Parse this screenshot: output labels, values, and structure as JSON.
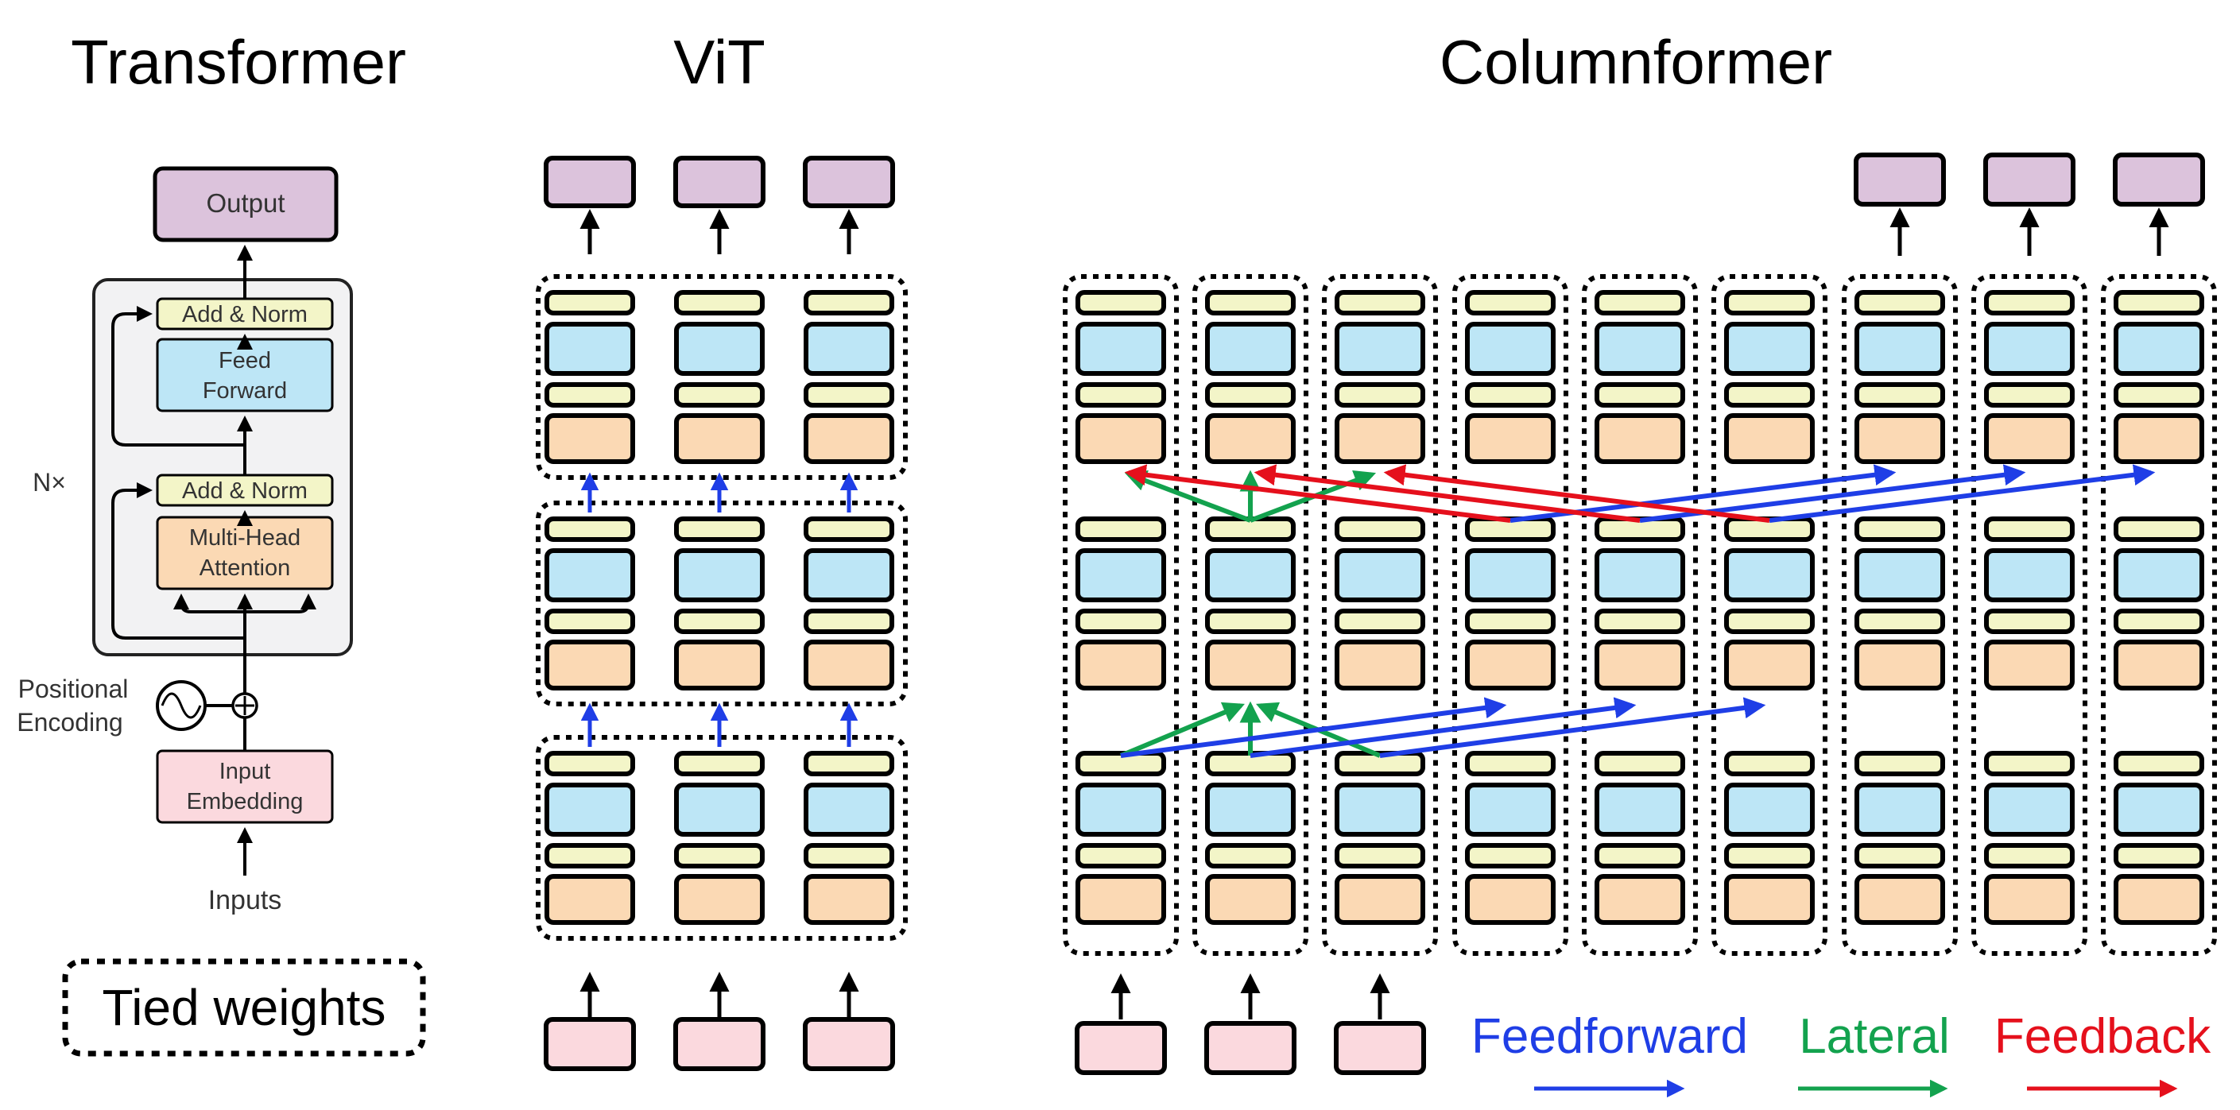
{
  "titles": {
    "transformer": "Transformer",
    "vit": "ViT",
    "columnformer": "Columnformer"
  },
  "transformer_block": {
    "output": "Output",
    "add_norm_top": "Add & Norm",
    "feed_forward_line1": "Feed",
    "feed_forward_line2": "Forward",
    "repeat": "N×",
    "add_norm_bottom": "Add & Norm",
    "attention_line1": "Multi-Head",
    "attention_line2": "Attention",
    "positional_line1": "Positional",
    "positional_line2": "Encoding",
    "embedding_line1": "Input",
    "embedding_line2": "Embedding",
    "inputs": "Inputs"
  },
  "tied_weights_label": "Tied weights",
  "legend": {
    "feedforward": "Feedforward",
    "lateral": "Lateral",
    "feedback": "Feedback"
  },
  "colors": {
    "output_fill": "#dcc3dc",
    "norm_fill": "#f3f5c8",
    "ffn_fill": "#bde6f6",
    "attention_fill": "#fbd9b4",
    "embedding_fill": "#fbd9de",
    "feedforward": "#1f3ee6",
    "lateral": "#13a24e",
    "feedback": "#e5101c",
    "panel_fill": "#f2f2f3"
  }
}
